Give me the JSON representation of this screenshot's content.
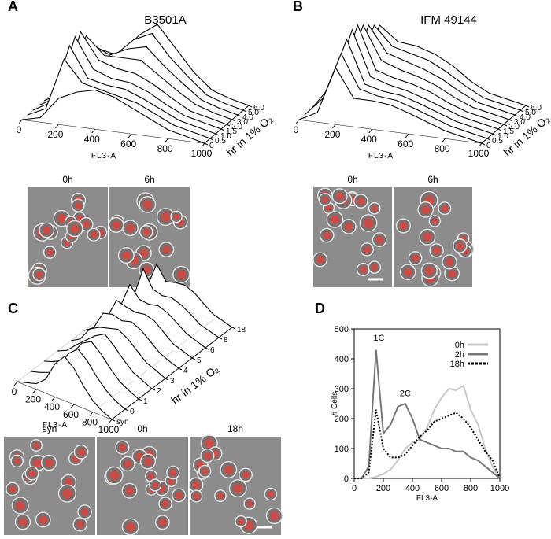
{
  "chart_data": [
    {
      "type": "waterfall3d",
      "panel_label": "A",
      "title": "B3501A",
      "xlabel": "FL3-A",
      "zlabel": "hr in 1% O₂",
      "x": [
        0,
        100,
        200,
        300,
        400,
        500,
        600,
        700,
        800,
        900,
        1000
      ],
      "xlim": [
        0,
        1000
      ],
      "xticks": [
        0,
        200,
        400,
        600,
        800,
        1000
      ],
      "grid": true,
      "series": [
        {
          "name": "0",
          "color": "#000000",
          "values": [
            0,
            5,
            30,
            40,
            45,
            40,
            30,
            20,
            10,
            5,
            0
          ]
        },
        {
          "name": "0.5",
          "color": "#000000",
          "values": [
            0,
            10,
            70,
            45,
            40,
            35,
            30,
            20,
            10,
            5,
            0
          ]
        },
        {
          "name": "1.0",
          "color": "#000000",
          "values": [
            0,
            12,
            80,
            45,
            40,
            38,
            30,
            20,
            10,
            5,
            0
          ]
        },
        {
          "name": "1.5",
          "color": "#000000",
          "values": [
            0,
            12,
            85,
            50,
            42,
            40,
            32,
            20,
            10,
            5,
            0
          ]
        },
        {
          "name": "2.0",
          "color": "#000000",
          "values": [
            0,
            12,
            85,
            55,
            48,
            45,
            35,
            22,
            10,
            5,
            0
          ]
        },
        {
          "name": "3.0",
          "color": "#000000",
          "values": [
            0,
            10,
            75,
            55,
            55,
            55,
            40,
            25,
            12,
            5,
            0
          ]
        },
        {
          "name": "4.0",
          "color": "#000000",
          "values": [
            0,
            8,
            60,
            50,
            60,
            65,
            45,
            28,
            12,
            5,
            0
          ]
        },
        {
          "name": "5.0",
          "color": "#000000",
          "values": [
            0,
            8,
            50,
            45,
            65,
            75,
            50,
            30,
            12,
            5,
            0
          ]
        },
        {
          "name": "6.0",
          "color": "#000000",
          "values": [
            0,
            6,
            40,
            40,
            65,
            80,
            55,
            30,
            12,
            5,
            0
          ]
        }
      ],
      "image_labels": [
        "0h",
        "6h"
      ]
    },
    {
      "type": "waterfall3d",
      "panel_label": "B",
      "title": "IFM 49144",
      "xlabel": "FL3-A",
      "zlabel": "hr in 1% O₂",
      "x": [
        0,
        100,
        200,
        300,
        400,
        500,
        600,
        700,
        800,
        900,
        1000
      ],
      "xlim": [
        0,
        1000
      ],
      "xticks": [
        0,
        200,
        400,
        600,
        800,
        1000
      ],
      "grid": true,
      "series": [
        {
          "name": "0",
          "color": "#000000",
          "values": [
            0,
            10,
            60,
            30,
            30,
            28,
            22,
            15,
            8,
            4,
            0
          ]
        },
        {
          "name": "0.5",
          "color": "#000000",
          "values": [
            0,
            20,
            70,
            35,
            30,
            28,
            22,
            15,
            8,
            4,
            0
          ]
        },
        {
          "name": "1.0",
          "color": "#000000",
          "values": [
            0,
            25,
            80,
            35,
            30,
            28,
            22,
            15,
            8,
            4,
            0
          ]
        },
        {
          "name": "1.5",
          "color": "#000000",
          "values": [
            0,
            25,
            85,
            38,
            32,
            28,
            22,
            15,
            8,
            4,
            0
          ]
        },
        {
          "name": "2.0",
          "color": "#000000",
          "values": [
            0,
            25,
            85,
            40,
            34,
            30,
            24,
            15,
            8,
            4,
            0
          ]
        },
        {
          "name": "3.0",
          "color": "#000000",
          "values": [
            0,
            22,
            80,
            45,
            38,
            33,
            26,
            16,
            8,
            4,
            0
          ]
        },
        {
          "name": "4.0",
          "color": "#000000",
          "values": [
            0,
            20,
            75,
            48,
            42,
            36,
            28,
            17,
            8,
            4,
            0
          ]
        },
        {
          "name": "5.0",
          "color": "#000000",
          "values": [
            0,
            18,
            70,
            50,
            45,
            40,
            30,
            18,
            8,
            4,
            0
          ]
        },
        {
          "name": "6.0",
          "color": "#000000",
          "values": [
            0,
            18,
            65,
            50,
            48,
            42,
            32,
            18,
            8,
            4,
            0
          ]
        }
      ],
      "image_labels": [
        "0h",
        "6h"
      ]
    },
    {
      "type": "waterfall3d",
      "panel_label": "C",
      "xlabel": "FL3-A",
      "zlabel": "hr in 1% O₂",
      "x": [
        0,
        100,
        200,
        300,
        400,
        500,
        600,
        700,
        800,
        900,
        1000
      ],
      "xlim": [
        0,
        1000
      ],
      "xticks": [
        0,
        200,
        400,
        600,
        800,
        1000
      ],
      "grid": true,
      "series": [
        {
          "name": "syn",
          "color": "#000000",
          "values": [
            0,
            5,
            10,
            25,
            60,
            80,
            65,
            40,
            20,
            8,
            0
          ]
        },
        {
          "name": "0",
          "color": "#000000",
          "values": [
            0,
            5,
            12,
            30,
            60,
            75,
            60,
            38,
            20,
            8,
            0
          ]
        },
        {
          "name": "1",
          "color": "#000000",
          "values": [
            0,
            6,
            15,
            35,
            60,
            70,
            55,
            35,
            18,
            8,
            0
          ]
        },
        {
          "name": "2",
          "color": "#000000",
          "values": [
            0,
            8,
            25,
            40,
            55,
            65,
            50,
            32,
            16,
            8,
            0
          ]
        },
        {
          "name": "3",
          "color": "#000000",
          "values": [
            0,
            10,
            35,
            45,
            50,
            55,
            45,
            30,
            15,
            8,
            0
          ]
        },
        {
          "name": "4",
          "color": "#000000",
          "values": [
            0,
            12,
            45,
            50,
            45,
            50,
            42,
            28,
            14,
            6,
            0
          ]
        },
        {
          "name": "5",
          "color": "#000000",
          "values": [
            0,
            12,
            50,
            45,
            42,
            45,
            40,
            26,
            12,
            6,
            0
          ]
        },
        {
          "name": "6",
          "color": "#000000",
          "values": [
            0,
            14,
            60,
            40,
            38,
            42,
            36,
            24,
            12,
            6,
            0
          ]
        },
        {
          "name": "8",
          "color": "#000000",
          "values": [
            0,
            14,
            70,
            40,
            35,
            38,
            32,
            22,
            10,
            5,
            0
          ]
        },
        {
          "name": "18",
          "color": "#000000",
          "values": [
            0,
            12,
            60,
            35,
            40,
            42,
            35,
            22,
            10,
            5,
            0
          ]
        }
      ],
      "image_labels": [
        "syn",
        "0h",
        "18h"
      ]
    },
    {
      "type": "line",
      "panel_label": "D",
      "xlabel": "FL3-A",
      "ylabel": "# Cells",
      "x": [
        0,
        50,
        100,
        150,
        200,
        250,
        300,
        350,
        400,
        450,
        500,
        550,
        600,
        650,
        700,
        750,
        800,
        850,
        900,
        950,
        1000
      ],
      "xlim": [
        0,
        1000
      ],
      "xticks": [
        0,
        200,
        400,
        600,
        800,
        1000
      ],
      "ylim": [
        0,
        500
      ],
      "yticks": [
        0,
        100,
        200,
        300,
        400,
        500
      ],
      "legend": "top-right",
      "series": [
        {
          "name": "0h",
          "color": "#c8c8c8",
          "dash": false,
          "values": [
            0,
            0,
            0,
            5,
            15,
            30,
            60,
            100,
            120,
            130,
            170,
            230,
            270,
            300,
            295,
            310,
            230,
            180,
            100,
            40,
            0
          ]
        },
        {
          "name": "2h",
          "color": "#777777",
          "dash": false,
          "values": [
            0,
            0,
            40,
            430,
            150,
            180,
            240,
            250,
            200,
            130,
            120,
            110,
            100,
            100,
            90,
            90,
            70,
            60,
            40,
            20,
            0
          ]
        },
        {
          "name": "18h",
          "color": "#000000",
          "dash": true,
          "values": [
            0,
            0,
            20,
            230,
            100,
            70,
            70,
            80,
            110,
            140,
            160,
            190,
            200,
            210,
            220,
            200,
            170,
            130,
            90,
            60,
            0
          ]
        }
      ],
      "annotations": [
        {
          "text": "1C",
          "x": 170,
          "y": 460
        },
        {
          "text": "2C",
          "x": 350,
          "y": 275
        }
      ]
    }
  ]
}
